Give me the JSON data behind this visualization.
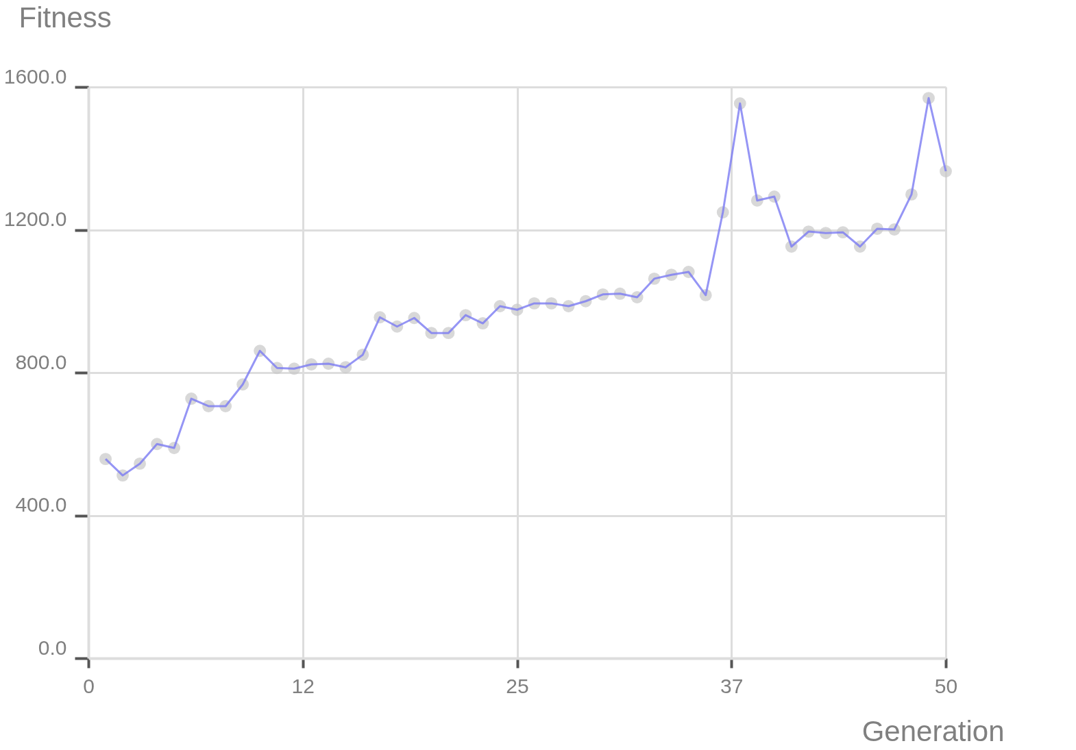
{
  "chart_data": {
    "type": "line",
    "xlabel": "Generation",
    "ylabel": "Fitness",
    "x": [
      1,
      2,
      3,
      4,
      5,
      6,
      7,
      8,
      9,
      10,
      11,
      12,
      13,
      14,
      15,
      16,
      17,
      18,
      19,
      20,
      21,
      22,
      23,
      24,
      25,
      26,
      27,
      28,
      29,
      30,
      31,
      32,
      33,
      34,
      35,
      36,
      37,
      38,
      39,
      40,
      41,
      42,
      43,
      44,
      45,
      46,
      47,
      48,
      49,
      50
    ],
    "series": [
      {
        "color": "#7b7bf2",
        "values": [
          558,
          512,
          545,
          600,
          589,
          727,
          706,
          706,
          767,
          861,
          813,
          811,
          823,
          825,
          815,
          850,
          955,
          929,
          953,
          911,
          911,
          961,
          938,
          986,
          976,
          994,
          994,
          986,
          1000,
          1019,
          1021,
          1011,
          1063,
          1074,
          1082,
          1017,
          1249,
          1554,
          1282,
          1293,
          1153,
          1195,
          1191,
          1193,
          1153,
          1203,
          1201,
          1299,
          1569,
          1364
        ]
      }
    ],
    "xlim": [
      0,
      50
    ],
    "xticks": [
      0,
      {
        "value": 12.5,
        "label": "12"
      },
      25,
      {
        "value": 37.5,
        "label": "37"
      },
      50
    ],
    "ylim": [
      0,
      1600
    ],
    "yticks": [
      {
        "value": 0,
        "label": "0.0"
      },
      {
        "value": 400,
        "label": "400.0"
      },
      {
        "value": 800,
        "label": "800.0"
      },
      {
        "value": 1200,
        "label": "1200.0"
      },
      {
        "value": 1600,
        "label": "1600.0"
      }
    ],
    "grid": true,
    "marker": "circle",
    "line_style": "solid"
  }
}
